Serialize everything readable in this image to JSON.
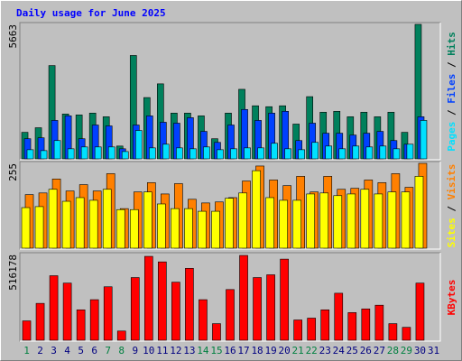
{
  "chart_data": [
    {
      "type": "bar",
      "title": "Daily usage for June 2025",
      "ylim": [
        0,
        5663
      ],
      "yticks": [
        5663
      ],
      "legend_separator": " / ",
      "series": [
        {
          "name": "Pages",
          "color": "#00e0ff",
          "values": [
            385,
            347,
            770,
            424,
            501,
            501,
            501,
            308,
            1194,
            462,
            616,
            462,
            424,
            501,
            385,
            424,
            462,
            462,
            655,
            424,
            385,
            693,
            539,
            424,
            539,
            501,
            539,
            424,
            616,
            1618,
            0
          ]
        },
        {
          "name": "Files",
          "color": "#0040ff",
          "values": [
            847,
            886,
            1618,
            1810,
            847,
            1425,
            1387,
            424,
            1425,
            1810,
            1541,
            1502,
            1733,
            1156,
            693,
            1425,
            2080,
            1618,
            1926,
            2003,
            770,
            1502,
            1079,
            1079,
            1002,
            1079,
            1156,
            770,
            616,
            1772,
            0
          ]
        },
        {
          "name": "Hits",
          "color": "#00805c",
          "values": [
            1117,
            1310,
            3929,
            1888,
            1849,
            1926,
            1772,
            539,
            4353,
            2581,
            3159,
            1926,
            1926,
            1810,
            847,
            1926,
            2928,
            2234,
            2196,
            2234,
            1464,
            2619,
            1965,
            2003,
            1772,
            1965,
            1772,
            1965,
            1117,
            5663,
            0
          ]
        }
      ]
    },
    {
      "type": "bar",
      "ylim": [
        0,
        255
      ],
      "yticks": [
        255
      ],
      "legend_separator": " / ",
      "series": [
        {
          "name": "Sites",
          "color": "#ffff00",
          "values": [
            122,
            125,
            177,
            141,
            152,
            144,
            177,
            116,
            116,
            169,
            133,
            119,
            119,
            111,
            111,
            150,
            166,
            233,
            152,
            144,
            144,
            163,
            166,
            158,
            163,
            177,
            163,
            169,
            169,
            216,
            0
          ]
        },
        {
          "name": "Visits",
          "color": "#ff8000",
          "values": [
            161,
            166,
            208,
            172,
            191,
            172,
            224,
            119,
            169,
            197,
            163,
            194,
            147,
            136,
            139,
            152,
            202,
            247,
            205,
            188,
            216,
            169,
            216,
            177,
            180,
            205,
            197,
            224,
            183,
            255,
            0
          ]
        }
      ]
    },
    {
      "type": "bar",
      "ylim": [
        0,
        516178
      ],
      "yticks": [
        516178
      ],
      "categories": [
        "1",
        "2",
        "3",
        "4",
        "5",
        "6",
        "7",
        "8",
        "9",
        "10",
        "11",
        "12",
        "13",
        "14",
        "15",
        "16",
        "17",
        "18",
        "19",
        "20",
        "21",
        "22",
        "23",
        "24",
        "25",
        "26",
        "27",
        "28",
        "29",
        "30",
        "31"
      ],
      "category_colors": [
        "#008040",
        "#000080",
        "#000080",
        "#000080",
        "#000080",
        "#000080",
        "#008040",
        "#008040",
        "#000080",
        "#000080",
        "#000080",
        "#000080",
        "#000080",
        "#008040",
        "#008040",
        "#000080",
        "#000080",
        "#000080",
        "#000080",
        "#000080",
        "#008040",
        "#008040",
        "#000080",
        "#000080",
        "#000080",
        "#000080",
        "#000080",
        "#008040",
        "#008040",
        "#000080",
        "#000080"
      ],
      "series": [
        {
          "name": "KBytes",
          "color": "#ff0000",
          "values": [
            116550,
            222000,
            388500,
            344100,
            183150,
            244200,
            321900,
            55500,
            377400,
            505050,
            471750,
            349650,
            432900,
            244200,
            99900,
            305250,
            510600,
            377400,
            394050,
            488400,
            122100,
            133200,
            183150,
            283050,
            166500,
            188700,
            210900,
            99900,
            77700,
            344100,
            0
          ]
        }
      ]
    }
  ]
}
